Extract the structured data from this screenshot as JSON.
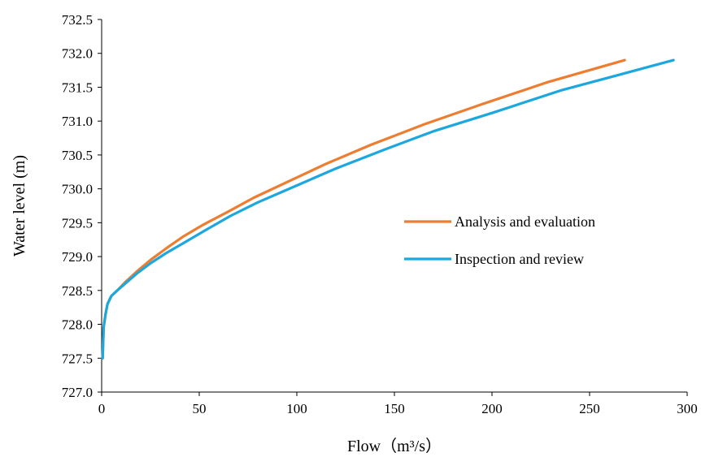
{
  "chart_data": {
    "type": "line",
    "xlabel": "Flow（m³/s）",
    "ylabel": "Water level (m)",
    "xlim": [
      0,
      300
    ],
    "ylim": [
      727.0,
      732.5
    ],
    "xticks": [
      0,
      50,
      100,
      150,
      200,
      250,
      300
    ],
    "yticks": [
      727.0,
      727.5,
      728.0,
      728.5,
      729.0,
      729.5,
      730.0,
      730.5,
      731.0,
      731.5,
      732.0,
      732.5
    ],
    "xtick_labels": [
      "0",
      "50",
      "100",
      "150",
      "200",
      "250",
      "300"
    ],
    "ytick_labels": [
      "727.0",
      "727.5",
      "728.0",
      "728.5",
      "729.0",
      "729.5",
      "730.0",
      "730.5",
      "731.0",
      "731.5",
      "732.0",
      "732.5"
    ],
    "grid": false,
    "legend_position": "center-right",
    "series": [
      {
        "name": "Analysis and evaluation",
        "color": "#ED7D31",
        "x": [
          0.5,
          1,
          2,
          3,
          5,
          8,
          12,
          18,
          25,
          33,
          42,
          52,
          64,
          78,
          95,
          115,
          138,
          165,
          195,
          228,
          268
        ],
        "y": [
          727.5,
          727.95,
          728.15,
          728.3,
          728.42,
          728.5,
          728.62,
          728.78,
          728.95,
          729.12,
          729.3,
          729.47,
          729.65,
          729.87,
          730.1,
          730.37,
          730.65,
          730.95,
          731.25,
          731.57,
          731.9
        ]
      },
      {
        "name": "Inspection and review",
        "color": "#1CA7DF",
        "x": [
          0.5,
          1,
          2,
          3,
          5,
          8,
          12,
          18,
          25,
          33,
          42,
          52,
          66,
          80,
          100,
          120,
          145,
          170,
          200,
          235,
          293
        ],
        "y": [
          727.5,
          727.95,
          728.15,
          728.3,
          728.42,
          728.5,
          728.6,
          728.75,
          728.9,
          729.05,
          729.2,
          729.37,
          729.6,
          729.8,
          730.05,
          730.3,
          730.58,
          730.85,
          731.12,
          731.45,
          731.9
        ]
      }
    ]
  }
}
